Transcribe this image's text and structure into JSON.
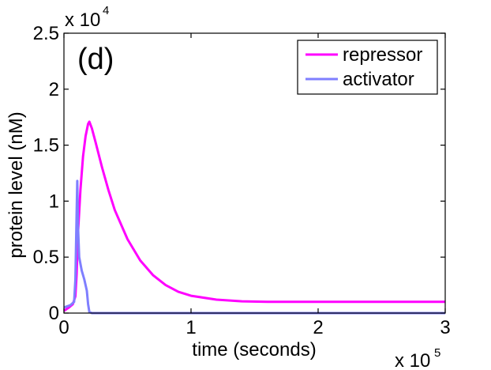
{
  "chart_data": {
    "type": "line",
    "panel_label": "(d)",
    "title": "",
    "xlabel": "time (seconds)",
    "ylabel": "protein level (nM)",
    "xlim": [
      0,
      3
    ],
    "ylim": [
      0,
      2.5
    ],
    "x_multiplier": {
      "base": "x 10",
      "exp": "5"
    },
    "y_multiplier": {
      "base": "x 10",
      "exp": "4"
    },
    "xticks": [
      0,
      1,
      2,
      3
    ],
    "xtick_labels": [
      "0",
      "1",
      "2",
      "3"
    ],
    "yticks": [
      0,
      0.5,
      1,
      1.5,
      2,
      2.5
    ],
    "ytick_labels": [
      "0",
      "0.5",
      "1",
      "1.5",
      "2",
      "2.5"
    ],
    "legend_position": "top-right",
    "series": [
      {
        "name": "repressor",
        "color": "#ff00ff",
        "x": [
          0,
          0.04,
          0.07,
          0.09,
          0.1,
          0.11,
          0.13,
          0.15,
          0.17,
          0.19,
          0.2,
          0.22,
          0.25,
          0.3,
          0.35,
          0.4,
          0.5,
          0.6,
          0.7,
          0.8,
          0.9,
          1.0,
          1.2,
          1.4,
          1.6,
          2.0,
          2.5,
          3.0
        ],
        "values": [
          0.02,
          0.05,
          0.08,
          0.15,
          0.35,
          0.7,
          1.1,
          1.4,
          1.58,
          1.69,
          1.71,
          1.65,
          1.52,
          1.3,
          1.1,
          0.92,
          0.66,
          0.47,
          0.34,
          0.25,
          0.19,
          0.155,
          0.12,
          0.105,
          0.1,
          0.1,
          0.1,
          0.1
        ]
      },
      {
        "name": "activator",
        "color": "#7f7fff",
        "x": [
          0,
          0.05,
          0.08,
          0.09,
          0.1,
          0.105,
          0.11,
          0.12,
          0.14,
          0.16,
          0.18,
          0.19,
          0.2,
          0.22,
          0.3,
          1.0,
          2.0,
          3.0
        ],
        "values": [
          0.05,
          0.07,
          0.1,
          0.3,
          0.9,
          1.18,
          0.8,
          0.5,
          0.38,
          0.3,
          0.2,
          0.08,
          0.01,
          0.0,
          0.0,
          0.0,
          0.0,
          0.0
        ]
      }
    ]
  }
}
